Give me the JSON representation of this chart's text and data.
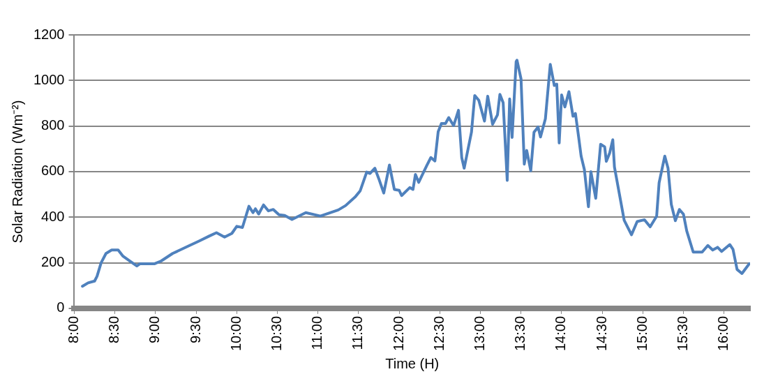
{
  "chart_data": {
    "type": "line",
    "xlabel": "Time (H)",
    "ylabel": "Solar Radiation (Wm⁻²)",
    "x": [
      8.1,
      8.17,
      8.25,
      8.28,
      8.33,
      8.39,
      8.46,
      8.54,
      8.6,
      8.69,
      8.77,
      8.81,
      8.99,
      9.07,
      9.21,
      9.42,
      9.54,
      9.66,
      9.75,
      9.85,
      9.94,
      10.0,
      10.07,
      10.15,
      10.2,
      10.23,
      10.27,
      10.33,
      10.39,
      10.45,
      10.52,
      10.59,
      10.68,
      10.85,
      11.03,
      11.25,
      11.34,
      11.46,
      11.52,
      11.6,
      11.64,
      11.7,
      11.75,
      11.81,
      11.88,
      11.94,
      12.0,
      12.03,
      12.13,
      12.17,
      12.2,
      12.24,
      12.34,
      12.39,
      12.44,
      12.48,
      12.52,
      12.57,
      12.61,
      12.67,
      12.73,
      12.77,
      12.8,
      12.89,
      12.93,
      12.98,
      13.05,
      13.09,
      13.15,
      13.21,
      13.24,
      13.28,
      13.33,
      13.36,
      13.39,
      13.44,
      13.45,
      13.5,
      13.54,
      13.57,
      13.62,
      13.66,
      13.71,
      13.74,
      13.8,
      13.86,
      13.91,
      13.94,
      13.97,
      14.0,
      14.04,
      14.09,
      14.14,
      14.17,
      14.21,
      14.24,
      14.28,
      14.33,
      14.36,
      14.42,
      14.48,
      14.53,
      14.55,
      14.59,
      14.63,
      14.65,
      14.71,
      14.77,
      14.86,
      14.93,
      15.02,
      15.09,
      15.17,
      15.2,
      15.27,
      15.31,
      15.35,
      15.4,
      15.45,
      15.5,
      15.54,
      15.62,
      15.73,
      15.8,
      15.86,
      15.92,
      15.97,
      16.07,
      16.11,
      16.16,
      16.22,
      16.31
    ],
    "series": [
      {
        "color": "#4f81bd",
        "values": [
          97,
          112,
          120,
          141,
          200,
          241,
          256,
          256,
          229,
          206,
          186,
          196,
          196,
          208,
          241,
          276,
          296,
          317,
          332,
          313,
          329,
          360,
          355,
          448,
          420,
          437,
          414,
          454,
          428,
          434,
          411,
          408,
          390,
          420,
          405,
          432,
          451,
          490,
          516,
          598,
          592,
          615,
          568,
          506,
          629,
          522,
          518,
          495,
          530,
          522,
          588,
          553,
          627,
          662,
          647,
          775,
          811,
          811,
          837,
          802,
          869,
          662,
          615,
          773,
          934,
          913,
          822,
          931,
          808,
          849,
          939,
          902,
          562,
          919,
          750,
          1083,
          1089,
          1007,
          633,
          693,
          604,
          773,
          796,
          752,
          832,
          1071,
          978,
          984,
          726,
          937,
          884,
          951,
          843,
          855,
          750,
          668,
          609,
          446,
          600,
          483,
          720,
          709,
          645,
          680,
          740,
          621,
          504,
          387,
          323,
          381,
          389,
          358,
          405,
          551,
          668,
          615,
          457,
          385,
          434,
          413,
          340,
          247,
          247,
          276,
          256,
          268,
          250,
          280,
          259,
          171,
          153,
          196
        ]
      }
    ],
    "xlim": [
      8,
      16.32
    ],
    "xticks": [
      {
        "value": 8,
        "label": "8:00"
      },
      {
        "value": 8.5,
        "label": "8:30"
      },
      {
        "value": 9,
        "label": "9:00"
      },
      {
        "value": 9.5,
        "label": "9:30"
      },
      {
        "value": 10,
        "label": "10:00"
      },
      {
        "value": 10.5,
        "label": "10:30"
      },
      {
        "value": 11,
        "label": "11:00"
      },
      {
        "value": 11.5,
        "label": "11:30"
      },
      {
        "value": 12,
        "label": "12:00"
      },
      {
        "value": 12.5,
        "label": "12:30"
      },
      {
        "value": 13,
        "label": "13:00"
      },
      {
        "value": 13.5,
        "label": "13:30"
      },
      {
        "value": 14,
        "label": "14:00"
      },
      {
        "value": 14.5,
        "label": "14:30"
      },
      {
        "value": 15,
        "label": "15:00"
      },
      {
        "value": 15.5,
        "label": "15:30"
      },
      {
        "value": 16,
        "label": "16:00"
      }
    ],
    "ylim": [
      0,
      1200
    ],
    "yticks": [
      0,
      200,
      400,
      600,
      800,
      1000,
      1200
    ],
    "grid": "y",
    "legend": false,
    "marker": "none",
    "line_style": "solid"
  }
}
